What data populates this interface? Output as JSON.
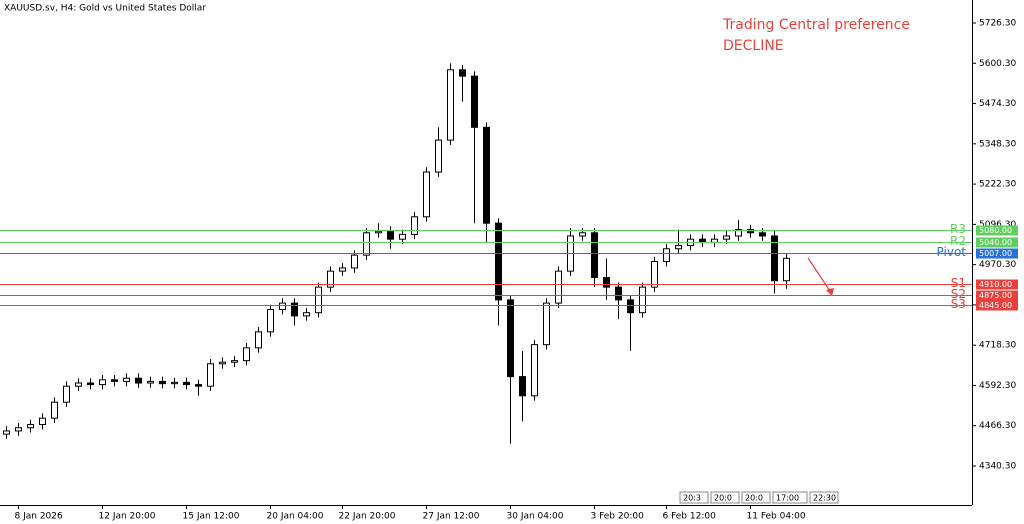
{
  "chart_data": {
    "type": "candlestick",
    "title": "XAUUSD.sv, H4:  Gold vs United States Dollar",
    "annotations": [
      "Trading Central preference",
      "DECLINE"
    ],
    "categories": [
      null,
      "8 Jan 2026",
      null,
      null,
      null,
      null,
      null,
      null,
      "12 Jan 20:00",
      null,
      null,
      null,
      null,
      null,
      null,
      "15 Jan 12:00",
      null,
      null,
      null,
      null,
      null,
      null,
      "20 Jan 04:00",
      null,
      null,
      null,
      null,
      null,
      "22 Jan 20:00",
      null,
      null,
      null,
      null,
      null,
      null,
      "27 Jan 12:00",
      null,
      null,
      null,
      null,
      null,
      null,
      "30 Jan 04:00",
      null,
      null,
      null,
      null,
      null,
      null,
      "3 Feb 20:00",
      null,
      null,
      null,
      null,
      null,
      "6 Feb 12:00",
      null,
      null,
      null,
      null,
      null,
      null,
      "11 Feb 04:00",
      null,
      null,
      null
    ],
    "open": [
      4440,
      4450,
      4460,
      4470,
      4490,
      4540,
      4590,
      4600,
      4595,
      4610,
      4605,
      4615,
      4600,
      4605,
      4598,
      4602,
      4595,
      4590,
      4660,
      4665,
      4670,
      4710,
      4760,
      4830,
      4850,
      4810,
      4820,
      4900,
      4950,
      4960,
      5000,
      5070,
      5075,
      5050,
      5065,
      5120,
      5260,
      5360,
      5580,
      5560,
      5400,
      5100,
      4860,
      4620,
      4560,
      4720,
      4850,
      4950,
      5060,
      5070,
      4930,
      4900,
      4860,
      4820,
      4900,
      4980,
      5020,
      5030,
      5050,
      5040,
      5050,
      5060,
      5080,
      5070,
      5060,
      4920
    ],
    "high": [
      4465,
      4475,
      4485,
      4505,
      4555,
      4605,
      4615,
      4615,
      4625,
      4625,
      4630,
      4630,
      4620,
      4620,
      4617,
      4617,
      4610,
      4675,
      4680,
      4685,
      4725,
      4775,
      4845,
      4865,
      4865,
      4835,
      4915,
      4965,
      4975,
      5015,
      5085,
      5100,
      5090,
      5080,
      5135,
      5275,
      5400,
      5600,
      5595,
      5575,
      5415,
      5115,
      4875,
      4700,
      4735,
      4865,
      4965,
      5085,
      5085,
      5085,
      4990,
      4915,
      4875,
      4915,
      4995,
      5035,
      5080,
      5065,
      5065,
      5065,
      5075,
      5110,
      5095,
      5085,
      5075,
      5005
    ],
    "low": [
      4425,
      4435,
      4445,
      4455,
      4475,
      4525,
      4575,
      4580,
      4580,
      4590,
      4590,
      4585,
      4585,
      4583,
      4583,
      4580,
      4560,
      4575,
      4645,
      4650,
      4655,
      4695,
      4745,
      4815,
      4780,
      4795,
      4805,
      4885,
      4935,
      4945,
      4985,
      5055,
      5020,
      5035,
      5050,
      5105,
      5245,
      5345,
      5480,
      5100,
      5040,
      4780,
      4410,
      4480,
      4545,
      4705,
      4835,
      4935,
      5045,
      4900,
      4860,
      4800,
      4700,
      4805,
      4885,
      4965,
      5005,
      5015,
      5025,
      5025,
      5035,
      5045,
      5055,
      5045,
      4880,
      4895
    ],
    "close": [
      4450,
      4460,
      4470,
      4490,
      4540,
      4590,
      4600,
      4595,
      4610,
      4605,
      4615,
      4600,
      4605,
      4598,
      4602,
      4595,
      4590,
      4660,
      4665,
      4670,
      4710,
      4760,
      4830,
      4850,
      4810,
      4820,
      4900,
      4950,
      4960,
      5000,
      5070,
      5075,
      5050,
      5065,
      5120,
      5260,
      5360,
      5580,
      5560,
      5400,
      5100,
      4860,
      4620,
      4560,
      4720,
      4850,
      4950,
      5060,
      5070,
      4930,
      4900,
      4860,
      4820,
      4900,
      4980,
      5020,
      5030,
      5050,
      5040,
      5050,
      5060,
      5080,
      5070,
      5060,
      4920,
      4990
    ],
    "ylim": [
      4218.3,
      5798.3
    ],
    "yticks": [
      {
        "value": 5726.3,
        "label": "5726.30"
      },
      {
        "value": 5600.3,
        "label": "5600.30"
      },
      {
        "value": 5474.3,
        "label": "5474.30"
      },
      {
        "value": 5348.3,
        "label": "5348.30"
      },
      {
        "value": 5222.3,
        "label": "5222.30"
      },
      {
        "value": 5096.3,
        "label": "5096.30"
      },
      {
        "value": 4970.3,
        "label": "4970.30"
      },
      {
        "value": 4844.3,
        "label": "4844.30"
      },
      {
        "value": 4718.3,
        "label": "4718.30"
      },
      {
        "value": 4592.3,
        "label": "4592.30"
      },
      {
        "value": 4466.3,
        "label": "4466.30"
      },
      {
        "value": 4340.3,
        "label": "4340.30"
      }
    ],
    "levels": [
      {
        "name": "R3",
        "value": 5080,
        "label": "5080.00",
        "color": "#5fcf5f"
      },
      {
        "name": "R2",
        "value": 5040,
        "label": "5040.00",
        "color": "#5fcf5f"
      },
      {
        "name": "Pivot",
        "value": 5007,
        "label": "5007.00",
        "color": "#2a6fdb"
      },
      {
        "name": "S1",
        "value": 4910,
        "label": "4910.00",
        "color": "#e8413c"
      },
      {
        "name": "S2",
        "value": 4875,
        "label": "4875.00",
        "color": "#e8413c"
      },
      {
        "name": "S3",
        "value": 4845,
        "label": "4845.00",
        "color": "#e8413c"
      }
    ],
    "time_boxes": [
      "20:3",
      "20:0",
      "20:0",
      "17:00",
      "22:30"
    ]
  }
}
